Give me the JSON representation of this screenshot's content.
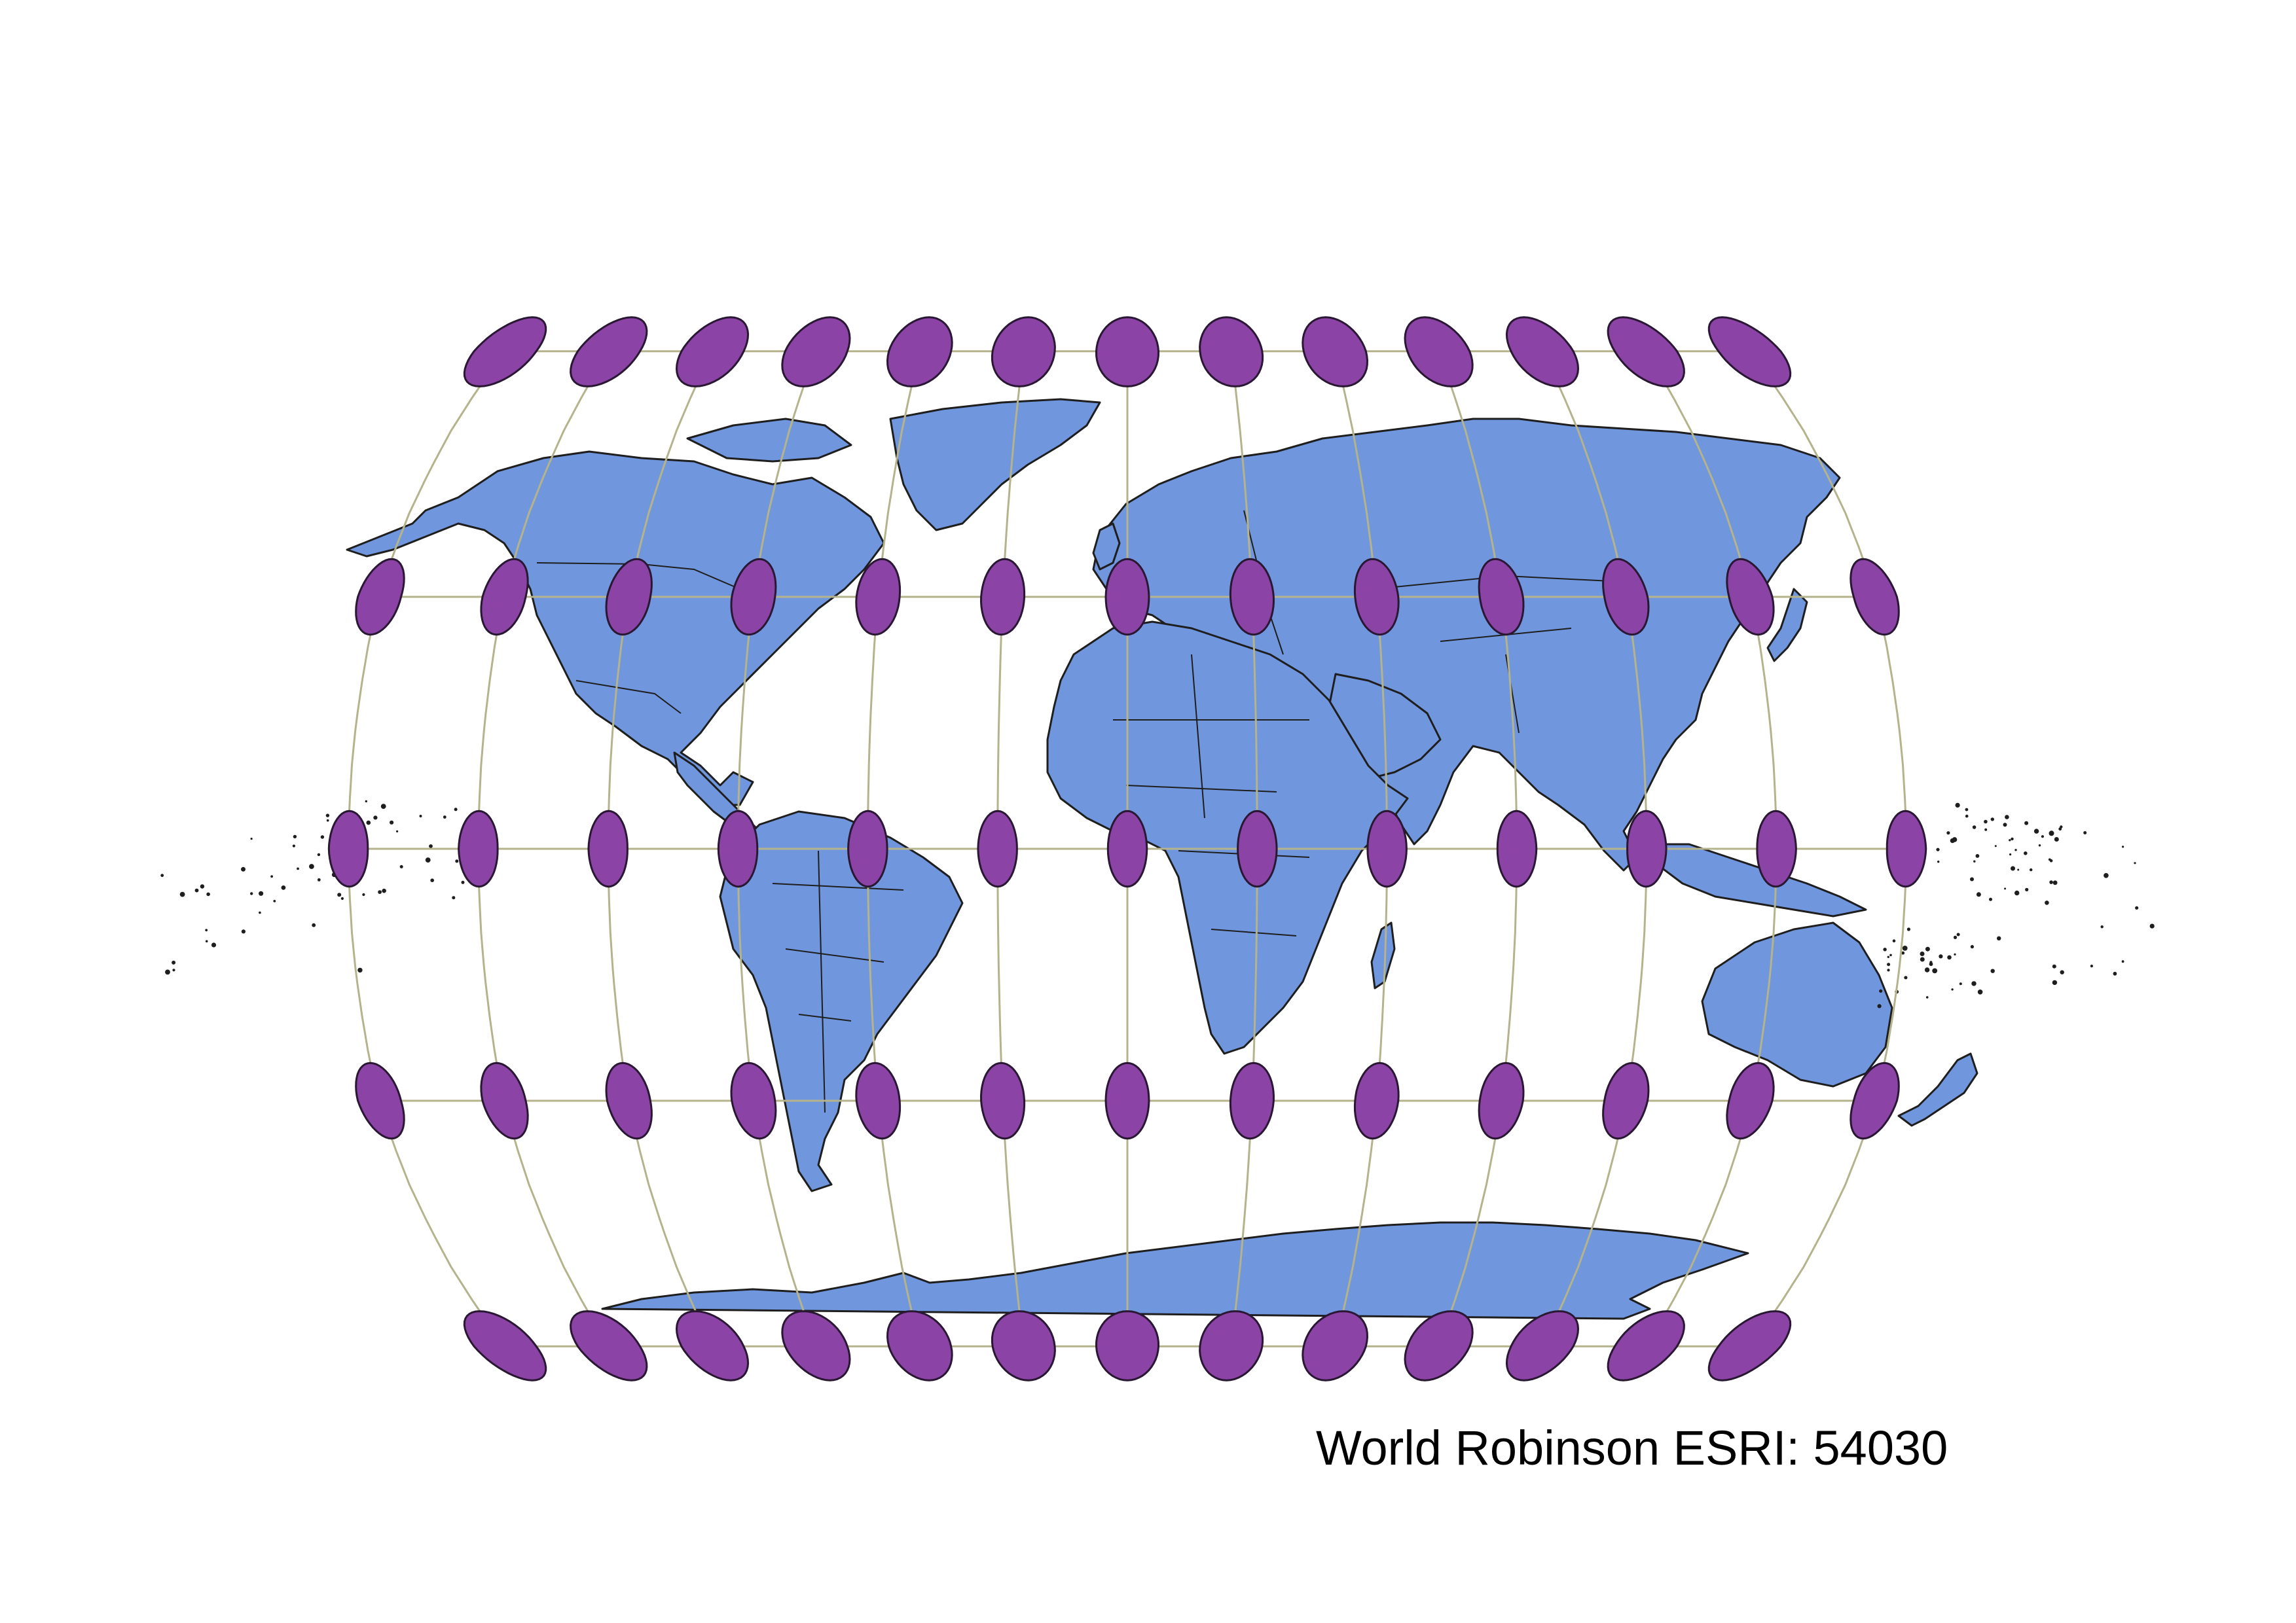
{
  "map": {
    "caption": "World Robinson ESRI: 54030",
    "projection": "Robinson",
    "layers": [
      "countries",
      "graticule",
      "tissot-indicatrix"
    ],
    "graticule": {
      "meridians_deg": [
        -180,
        -150,
        -120,
        -90,
        -60,
        -30,
        0,
        30,
        60,
        90,
        120,
        150,
        180
      ],
      "parallels_deg": [
        -60,
        -30,
        0,
        30,
        60
      ]
    },
    "tissot": {
      "longitudes_deg": [
        -180,
        -150,
        -120,
        -90,
        -60,
        -30,
        0,
        30,
        60,
        90,
        120,
        150,
        180
      ],
      "latitudes_deg": [
        -60,
        -30,
        0,
        30,
        60
      ]
    },
    "colors": {
      "background": "#ffffff",
      "land": "#7096de",
      "outline": "#1e1e1e",
      "graticule": "#b5b38c",
      "indicatrix": "#8b44a6"
    }
  }
}
